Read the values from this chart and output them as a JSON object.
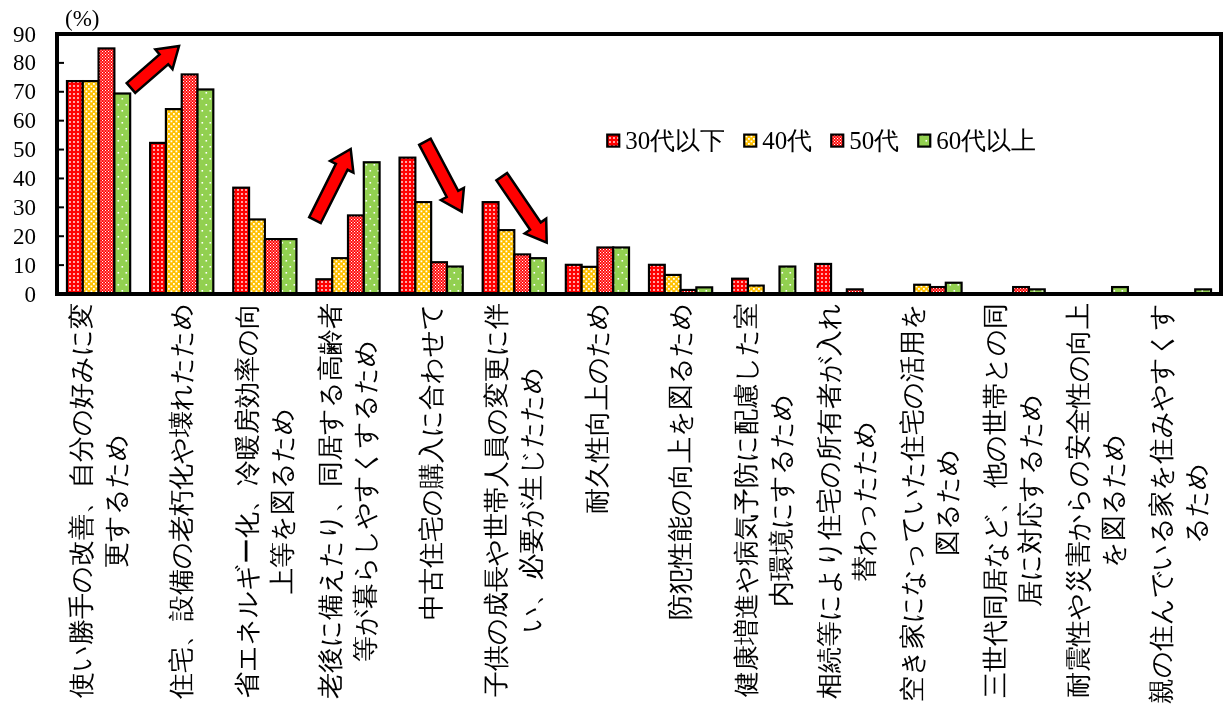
{
  "chart_data": {
    "type": "bar",
    "ylabel": "(%)",
    "categories": [
      "使い勝手の改善、自分の好みに変更するため",
      "住宅、設備の老朽化や壊れたため",
      "省エネルギー化、冷暖房効率の向上等を図るため",
      "老後に備えたり、同居する高齢者等が暮らしやすくするため",
      "中古住宅の購入に合わせて",
      "子供の成長や世帯人員の変更に伴い、必要が生じたため",
      "耐久性向上のため",
      "防犯性能の向上を図るため",
      "健康増進や病気予防に配慮した室内環境にするため",
      "相続等により住宅の所有者が入れ替わったため",
      "空き家になっていた住宅の活用を図るため",
      "三世代同居など、他の世帯との同居に対応するため",
      "耐震性や災害からの安全性の向上を図るため",
      "親の住んでいる家を住みやすくするため"
    ],
    "series": [
      {
        "name": "30代以下",
        "color": "#ff0000",
        "values": [
          73.7,
          52.3,
          36.8,
          5.1,
          47.2,
          31.8,
          10.1,
          10.1,
          5.3,
          10.4,
          0,
          0,
          0,
          0
        ]
      },
      {
        "name": "40代",
        "color": "#ffc000",
        "values": [
          73.7,
          64.0,
          25.8,
          12.4,
          31.8,
          22.1,
          9.4,
          6.6,
          2.9,
          0,
          3.2,
          0,
          0,
          0
        ]
      },
      {
        "name": "50代",
        "color": "#ff0000",
        "values": [
          85.0,
          76.0,
          19.0,
          27.2,
          11.0,
          13.7,
          16.1,
          1.4,
          0,
          1.6,
          2.4,
          2.4,
          0,
          0
        ]
      },
      {
        "name": "60代以上",
        "color": "#92d050",
        "values": [
          69.4,
          70.8,
          19.0,
          45.6,
          9.5,
          12.4,
          16.1,
          2.3,
          9.5,
          0,
          3.9,
          1.6,
          2.4,
          1.6
        ]
      }
    ],
    "ylim": [
      0,
      90
    ],
    "yticks": [
      0,
      10,
      20,
      30,
      40,
      50,
      60,
      70,
      80,
      90
    ],
    "legend": "top right"
  }
}
